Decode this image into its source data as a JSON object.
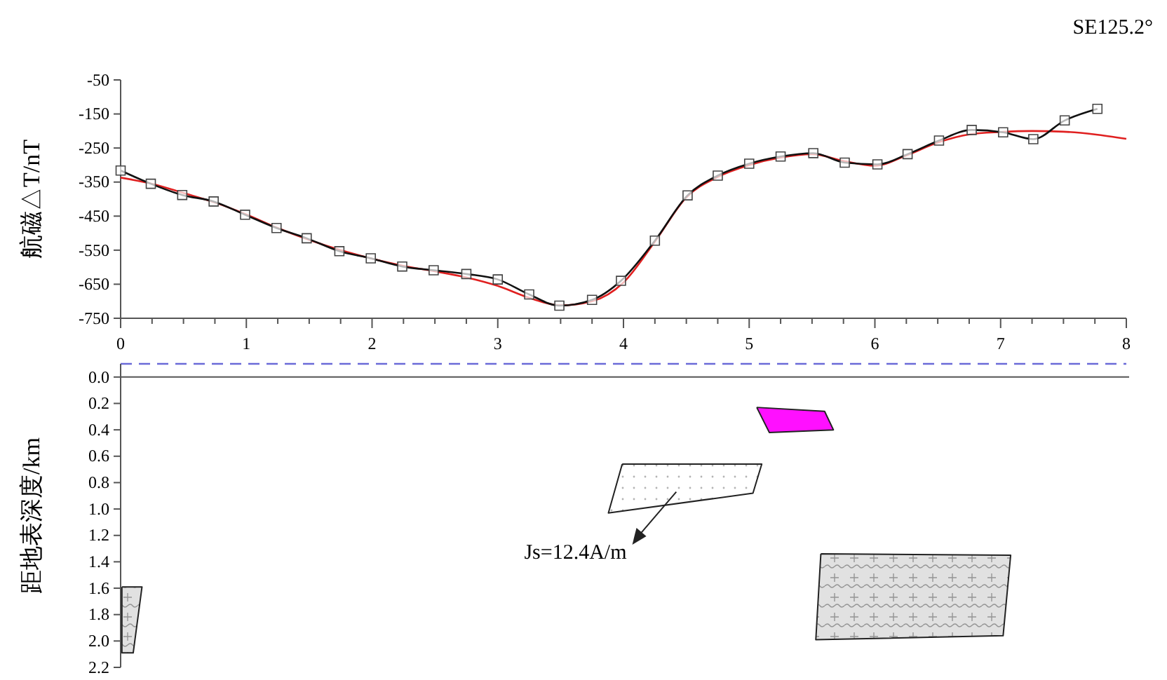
{
  "chart_data": [
    {
      "type": "line",
      "title": "SE125.2°",
      "ylabel": "航磁△T/nT",
      "xlim": [
        0,
        8
      ],
      "xticks": [
        0,
        {
          "value": 0.25,
          "label": null
        },
        {
          "value": 0.5,
          "label": null
        },
        {
          "value": 0.75,
          "label": null
        },
        1,
        {
          "value": 1.25,
          "label": null
        },
        {
          "value": 1.5,
          "label": null
        },
        {
          "value": 1.75,
          "label": null
        },
        2,
        {
          "value": 2.25,
          "label": null
        },
        {
          "value": 2.5,
          "label": null
        },
        {
          "value": 2.75,
          "label": null
        },
        3,
        {
          "value": 3.25,
          "label": null
        },
        {
          "value": 3.5,
          "label": null
        },
        {
          "value": 3.75,
          "label": null
        },
        4,
        {
          "value": 4.25,
          "label": null
        },
        {
          "value": 4.5,
          "label": null
        },
        {
          "value": 4.75,
          "label": null
        },
        5,
        {
          "value": 5.25,
          "label": null
        },
        {
          "value": 5.5,
          "label": null
        },
        {
          "value": 5.75,
          "label": null
        },
        6,
        {
          "value": 6.25,
          "label": null
        },
        {
          "value": 6.5,
          "label": null
        },
        {
          "value": 6.75,
          "label": null
        },
        7,
        {
          "value": 7.25,
          "label": null
        },
        {
          "value": 7.5,
          "label": null
        },
        {
          "value": 7.75,
          "label": null
        },
        8
      ],
      "ylim": [
        -750,
        -50
      ],
      "yticks": [
        -750,
        -650,
        -550,
        -450,
        -350,
        -250,
        -150,
        -50
      ],
      "grid": false,
      "series": [
        {
          "color": "#e02020",
          "marker": "none",
          "x": [
            0,
            0.25,
            0.5,
            0.75,
            1,
            1.25,
            1.5,
            1.75,
            2,
            2.25,
            2.5,
            2.75,
            3,
            3.25,
            3.5,
            3.75,
            4,
            4.25,
            4.5,
            4.75,
            5,
            5.25,
            5.5,
            5.75,
            6,
            6.25,
            6.5,
            6.75,
            7,
            7.25,
            7.5,
            7.75,
            8
          ],
          "values": [
            -337,
            -355,
            -382,
            -410,
            -445,
            -485,
            -520,
            -550,
            -575,
            -596,
            -612,
            -630,
            -655,
            -690,
            -712,
            -700,
            -645,
            -525,
            -395,
            -335,
            -300,
            -278,
            -268,
            -288,
            -302,
            -272,
            -234,
            -210,
            -203,
            -200,
            -202,
            -210,
            -223
          ]
        },
        {
          "color": "#111111",
          "marker": "square",
          "x": [
            0,
            0.24,
            0.49,
            0.74,
            0.99,
            1.24,
            1.48,
            1.74,
            1.99,
            2.24,
            2.49,
            2.75,
            3.0,
            3.25,
            3.49,
            3.75,
            3.98,
            4.25,
            4.51,
            4.75,
            5.0,
            5.25,
            5.51,
            5.76,
            6.02,
            6.26,
            6.51,
            6.77,
            7.02,
            7.26,
            7.51,
            7.77
          ],
          "values": [
            -316,
            -355,
            -388,
            -407,
            -446,
            -485,
            -515,
            -553,
            -574,
            -598,
            -609,
            -620,
            -636,
            -680,
            -713,
            -696,
            -640,
            -522,
            -389,
            -331,
            -296,
            -275,
            -265,
            -293,
            -298,
            -268,
            -228,
            -197,
            -204,
            -224,
            -169,
            -135
          ]
        }
      ]
    },
    {
      "type": "area",
      "ylabel": "距地表深度/km",
      "annotations": [
        "Js=12.4A/m"
      ],
      "tick_labels": "y",
      "marker": "none",
      "series": [
        {
          "color": "#ff10ff",
          "x": [
            5.06,
            5.6,
            5.67,
            5.16,
            5.06
          ],
          "values": [
            0.23,
            0.26,
            0.4,
            0.42,
            0.23
          ]
        },
        {
          "color": "#ffffff",
          "x": [
            3.99,
            5.1,
            5.03,
            3.88,
            3.99
          ],
          "values": [
            0.66,
            0.66,
            0.88,
            1.03,
            0.66
          ]
        },
        {
          "color": "#d4d4d4",
          "x": [
            5.57,
            7.08,
            7.02,
            5.53,
            5.57
          ],
          "values": [
            1.34,
            1.35,
            1.96,
            1.99,
            1.34
          ]
        },
        {
          "color": "#d4d4d4",
          "x": [
            0.01,
            0.17,
            0.1,
            0.01,
            0.01
          ],
          "values": [
            1.59,
            1.59,
            2.09,
            2.09,
            1.59
          ]
        }
      ],
      "xlim": [
        0,
        8
      ],
      "ylim": [
        2.2,
        -0.1
      ],
      "yticks": [
        {
          "value": 0,
          "label": "0.0"
        },
        0.2,
        0.4,
        0.6,
        0.8,
        {
          "value": 1,
          "label": "1.0"
        },
        1.2,
        1.4,
        1.6,
        1.8,
        {
          "value": 2,
          "label": "2.0"
        },
        2.2
      ],
      "ref_lines": [
        {
          "axis": "y",
          "value": -0.1,
          "color": "#6a6ad8",
          "line_style": "dashed"
        }
      ]
    }
  ]
}
